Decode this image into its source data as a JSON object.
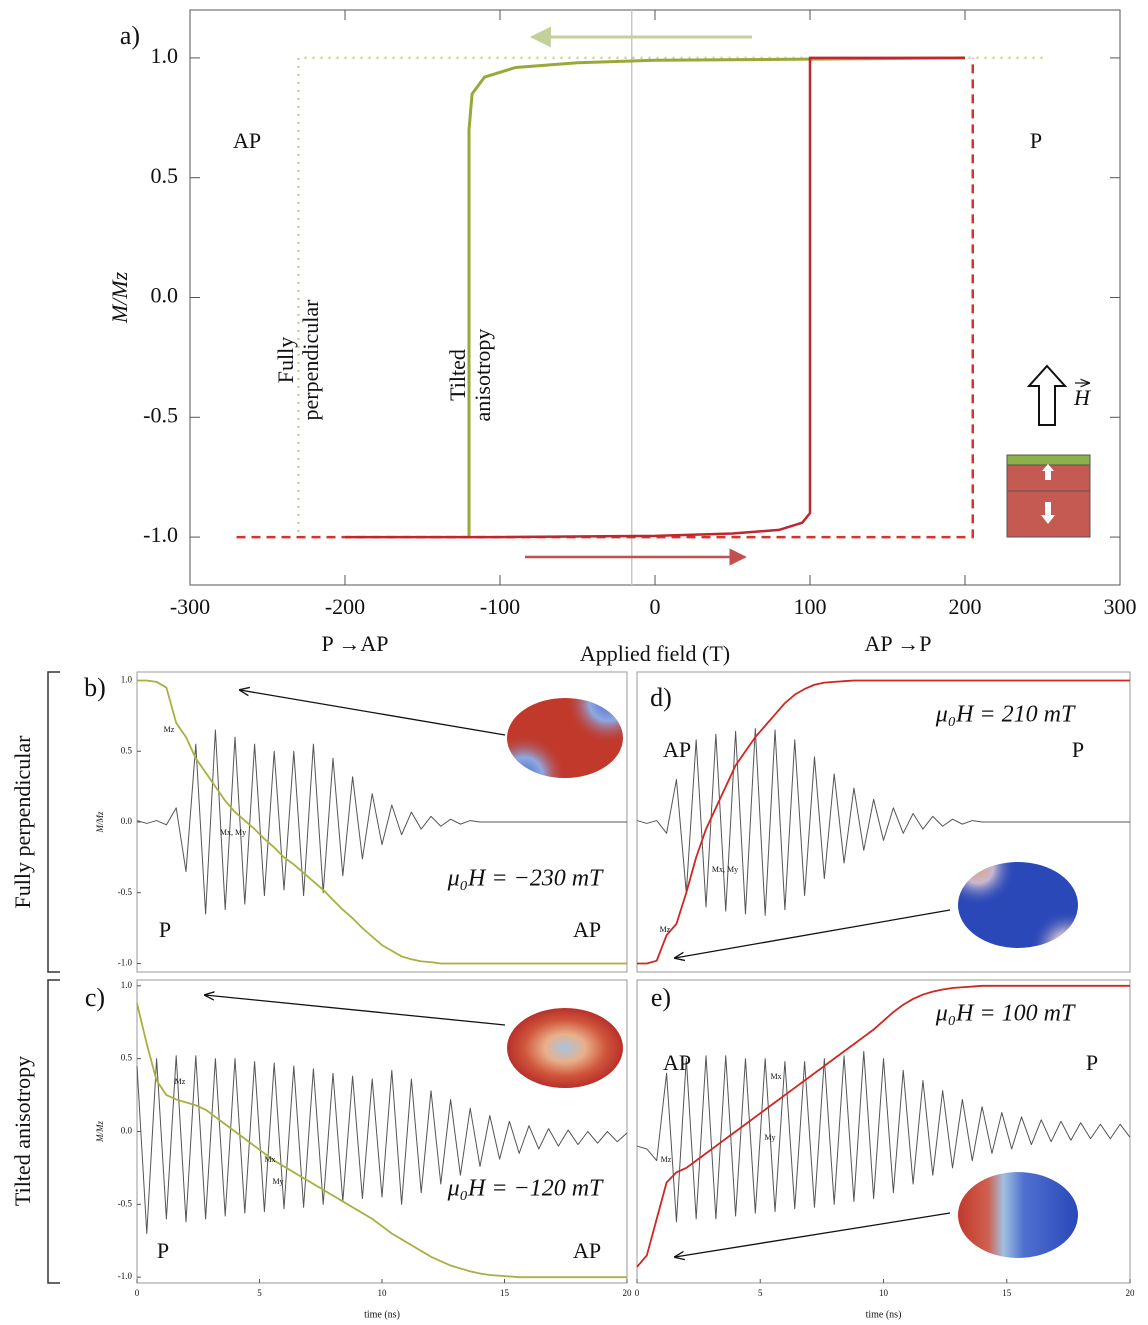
{
  "row_labels": [
    "Fully perpendicular",
    "Tilted anisotropy"
  ],
  "chart_data": [
    {
      "type": "line",
      "panel": "a",
      "x_label": "Applied field (T)",
      "y_label": "M/Mz",
      "xlim": [
        -300,
        300
      ],
      "ylim": [
        -1.2,
        1.2
      ],
      "xticks": [
        -300,
        -200,
        -100,
        0,
        100,
        200,
        300
      ],
      "yticks": [
        {
          "value": -1,
          "label": "-1.0"
        },
        -0.5,
        {
          "value": 0,
          "label": "0.0"
        },
        0.5,
        {
          "value": 1,
          "label": "1.0"
        }
      ],
      "vline": -15,
      "annotations": [
        "a)",
        "AP",
        "P",
        "Fully perpendicular",
        "Tilted anisotropy",
        "P →AP",
        "AP →P",
        "H"
      ],
      "series": [
        {
          "color": "#c9d48e",
          "dash": "dotted",
          "width": 2.5,
          "x": [
            250,
            -230,
            -230
          ],
          "values": [
            1,
            1,
            -1
          ]
        },
        {
          "color": "#d9312b",
          "dash": "dashed",
          "width": 2.5,
          "x": [
            -270,
            205,
            205
          ],
          "values": [
            -1,
            -1,
            1
          ]
        },
        {
          "color": "#9aa83a",
          "dash": "solid",
          "width": 3,
          "x": [
            200,
            100,
            0,
            -50,
            -90,
            -110,
            -118,
            -120,
            -120
          ],
          "values": [
            1,
            0.995,
            0.99,
            0.98,
            0.96,
            0.92,
            0.85,
            0.7,
            -1
          ]
        },
        {
          "color": "#c0272d",
          "dash": "solid",
          "width": 2.5,
          "x": [
            -200,
            -100,
            0,
            50,
            80,
            95,
            100,
            100,
            200
          ],
          "values": [
            -1,
            -1,
            -0.995,
            -0.985,
            -0.97,
            -0.94,
            -0.9,
            1,
            1
          ]
        }
      ]
    },
    {
      "type": "line",
      "panel": "b",
      "y_label": "M/Mz",
      "xlim": [
        0,
        20
      ],
      "ylim": [
        -1.06,
        1.06
      ],
      "yticks": [
        {
          "value": 1,
          "label": "1.0"
        },
        0.5,
        {
          "value": 0,
          "label": "0.0"
        },
        -0.5,
        {
          "value": -1,
          "label": "-1.0"
        }
      ],
      "annotations": [
        "b)",
        "μ₀H = −230 mT",
        "P",
        "AP",
        "Mz",
        "Mx, My"
      ],
      "x": [
        0,
        0.4,
        0.8,
        1.2,
        1.6,
        2,
        2.4,
        2.8,
        3.2,
        3.6,
        4,
        4.4,
        4.8,
        5.2,
        5.6,
        6,
        6.4,
        6.8,
        7.2,
        7.6,
        8,
        8.4,
        8.8,
        9.2,
        9.6,
        10,
        10.4,
        10.8,
        11.2,
        11.6,
        12,
        12.4,
        12.8,
        13.2,
        13.6,
        14,
        14.4,
        14.8,
        15.2,
        15.6,
        16,
        16.4,
        16.8,
        17.2,
        17.6,
        18,
        18.4,
        18.8,
        19.2,
        19.6,
        20
      ],
      "series": [
        {
          "color": "#555555",
          "dash": "solid",
          "width": 1,
          "values": [
            0.01,
            -0.01,
            0.01,
            -0.02,
            0.1,
            -0.35,
            0.55,
            -0.65,
            0.65,
            -0.62,
            0.6,
            -0.58,
            0.55,
            -0.52,
            0.5,
            -0.48,
            0.5,
            -0.52,
            0.55,
            -0.5,
            0.45,
            -0.38,
            0.32,
            -0.26,
            0.2,
            -0.16,
            0.12,
            -0.09,
            0.07,
            -0.05,
            0.04,
            -0.03,
            0.02,
            -0.015,
            0.01,
            0,
            0,
            0,
            0,
            0,
            0,
            0,
            0,
            0,
            0,
            0,
            0,
            0,
            0,
            0,
            0
          ]
        },
        {
          "color": "#a8b040",
          "dash": "solid",
          "width": 1.8,
          "values": [
            1,
            1,
            0.99,
            0.95,
            0.7,
            0.6,
            0.45,
            0.35,
            0.25,
            0.15,
            0.07,
            0.01,
            -0.05,
            -0.12,
            -0.18,
            -0.25,
            -0.3,
            -0.36,
            -0.42,
            -0.48,
            -0.55,
            -0.62,
            -0.68,
            -0.75,
            -0.81,
            -0.87,
            -0.91,
            -0.95,
            -0.97,
            -0.985,
            -0.99,
            -1,
            -1,
            -1,
            -1,
            -1,
            -1,
            -1,
            -1,
            -1,
            -1,
            -1,
            -1,
            -1,
            -1,
            -1,
            -1,
            -1,
            -1,
            -1,
            -1
          ]
        }
      ]
    },
    {
      "type": "line",
      "panel": "c",
      "x_label": "time (ns)",
      "y_label": "M/Mz",
      "xlim": [
        0,
        20
      ],
      "ylim": [
        -1.04,
        1.04
      ],
      "xticks": [
        0,
        5,
        10,
        15,
        20
      ],
      "yticks": [
        {
          "value": 1,
          "label": "1.0"
        },
        0.5,
        {
          "value": 0,
          "label": "0.0"
        },
        -0.5,
        {
          "value": -1,
          "label": "-1.0"
        }
      ],
      "annotations": [
        "c)",
        "μ₀H = −120 mT",
        "P",
        "AP",
        "Mz",
        "Mx",
        "My"
      ],
      "x": [
        0,
        0.4,
        0.8,
        1.2,
        1.6,
        2,
        2.4,
        2.8,
        3.2,
        3.6,
        4,
        4.4,
        4.8,
        5.2,
        5.6,
        6,
        6.4,
        6.8,
        7.2,
        7.6,
        8,
        8.4,
        8.8,
        9.2,
        9.6,
        10,
        10.4,
        10.8,
        11.2,
        11.6,
        12,
        12.4,
        12.8,
        13.2,
        13.6,
        14,
        14.4,
        14.8,
        15.2,
        15.6,
        16,
        16.4,
        16.8,
        17.2,
        17.6,
        18,
        18.4,
        18.8,
        19.2,
        19.6,
        20
      ],
      "series": [
        {
          "color": "#555555",
          "dash": "solid",
          "width": 1,
          "values": [
            0.45,
            -0.7,
            0.5,
            -0.6,
            0.52,
            -0.62,
            0.52,
            -0.6,
            0.5,
            -0.58,
            0.5,
            -0.56,
            0.48,
            -0.55,
            0.47,
            -0.53,
            0.45,
            -0.52,
            0.43,
            -0.5,
            0.4,
            -0.48,
            0.38,
            -0.46,
            0.36,
            -0.45,
            0.42,
            -0.5,
            0.36,
            -0.42,
            0.28,
            -0.36,
            0.22,
            -0.3,
            0.16,
            -0.24,
            0.11,
            -0.19,
            0.07,
            -0.15,
            0.04,
            -0.12,
            0.02,
            -0.1,
            0.01,
            -0.09,
            0,
            -0.08,
            0,
            -0.07,
            -0.01
          ]
        },
        {
          "color": "#a8b040",
          "dash": "solid",
          "width": 1.8,
          "values": [
            0.88,
            0.6,
            0.35,
            0.25,
            0.22,
            0.2,
            0.18,
            0.15,
            0.1,
            0.05,
            0,
            -0.05,
            -0.1,
            -0.15,
            -0.2,
            -0.24,
            -0.28,
            -0.32,
            -0.36,
            -0.4,
            -0.44,
            -0.48,
            -0.52,
            -0.56,
            -0.6,
            -0.65,
            -0.7,
            -0.74,
            -0.78,
            -0.82,
            -0.86,
            -0.89,
            -0.92,
            -0.94,
            -0.96,
            -0.975,
            -0.985,
            -0.99,
            -0.995,
            -1,
            -1,
            -1,
            -1,
            -1,
            -1,
            -1,
            -1,
            -1,
            -1,
            -1,
            -1
          ]
        }
      ]
    },
    {
      "type": "line",
      "panel": "d",
      "xlim": [
        0,
        20
      ],
      "ylim": [
        -1.06,
        1.06
      ],
      "annotations": [
        "d)",
        "μ₀H = 210 mT",
        "AP",
        "P",
        "Mz",
        "Mx, My"
      ],
      "x": [
        0,
        0.4,
        0.8,
        1.2,
        1.6,
        2,
        2.4,
        2.8,
        3.2,
        3.6,
        4,
        4.4,
        4.8,
        5.2,
        5.6,
        6,
        6.4,
        6.8,
        7.2,
        7.6,
        8,
        8.4,
        8.8,
        9.2,
        9.6,
        10,
        10.4,
        10.8,
        11.2,
        11.6,
        12,
        12.4,
        12.8,
        13.2,
        13.6,
        14,
        14.4,
        14.8,
        15.2,
        15.6,
        16,
        16.4,
        16.8,
        17.2,
        17.6,
        18,
        18.4,
        18.8,
        19.2,
        19.6,
        20
      ],
      "series": [
        {
          "color": "#555555",
          "dash": "solid",
          "width": 1,
          "values": [
            0.01,
            -0.01,
            0.01,
            -0.08,
            0.3,
            -0.5,
            0.58,
            -0.6,
            0.62,
            -0.63,
            0.64,
            -0.65,
            0.66,
            -0.66,
            0.65,
            -0.62,
            0.58,
            -0.52,
            0.46,
            -0.4,
            0.34,
            -0.29,
            0.24,
            -0.2,
            0.16,
            -0.13,
            0.1,
            -0.08,
            0.06,
            -0.05,
            0.04,
            -0.03,
            0.02,
            -0.015,
            0.01,
            0,
            0,
            0,
            0,
            0,
            0,
            0,
            0,
            0,
            0,
            0,
            0,
            0,
            0,
            0,
            0
          ]
        },
        {
          "color": "#d0261f",
          "dash": "solid",
          "width": 1.8,
          "values": [
            -1,
            -1,
            -0.98,
            -0.8,
            -0.72,
            -0.5,
            -0.25,
            -0.05,
            0.1,
            0.25,
            0.4,
            0.5,
            0.6,
            0.68,
            0.76,
            0.84,
            0.9,
            0.94,
            0.97,
            0.985,
            0.99,
            0.995,
            1,
            1,
            1,
            1,
            1,
            1,
            1,
            1,
            1,
            1,
            1,
            1,
            1,
            1,
            1,
            1,
            1,
            1,
            1,
            1,
            1,
            1,
            1,
            1,
            1,
            1,
            1,
            1,
            1
          ]
        }
      ]
    },
    {
      "type": "line",
      "panel": "e",
      "x_label": "time (ns)",
      "xlim": [
        0,
        20
      ],
      "ylim": [
        -1.04,
        1.04
      ],
      "xticks": [
        0,
        5,
        10,
        15,
        20
      ],
      "annotations": [
        "e)",
        "μ₀H = 100 mT",
        "AP",
        "P",
        "Mx",
        "My",
        "Mz"
      ],
      "x": [
        0,
        0.4,
        0.8,
        1.2,
        1.6,
        2,
        2.4,
        2.8,
        3.2,
        3.6,
        4,
        4.4,
        4.8,
        5.2,
        5.6,
        6,
        6.4,
        6.8,
        7.2,
        7.6,
        8,
        8.4,
        8.8,
        9.2,
        9.6,
        10,
        10.4,
        10.8,
        11.2,
        11.6,
        12,
        12.4,
        12.8,
        13.2,
        13.6,
        14,
        14.4,
        14.8,
        15.2,
        15.6,
        16,
        16.4,
        16.8,
        17.2,
        17.6,
        18,
        18.4,
        18.8,
        19.2,
        19.6,
        20
      ],
      "series": [
        {
          "color": "#555555",
          "dash": "solid",
          "width": 1,
          "values": [
            -0.1,
            -0.12,
            -0.2,
            0.4,
            -0.62,
            0.5,
            -0.6,
            0.52,
            -0.6,
            0.52,
            -0.58,
            0.5,
            -0.56,
            0.5,
            -0.55,
            0.48,
            -0.53,
            0.48,
            -0.52,
            0.5,
            -0.5,
            0.52,
            -0.48,
            0.55,
            -0.46,
            0.5,
            -0.42,
            0.42,
            -0.36,
            0.35,
            -0.3,
            0.28,
            -0.25,
            0.22,
            -0.2,
            0.17,
            -0.15,
            0.13,
            -0.12,
            0.1,
            -0.09,
            0.08,
            -0.07,
            0.07,
            -0.06,
            0.06,
            -0.05,
            0.05,
            -0.05,
            0.05,
            -0.04
          ]
        },
        {
          "color": "#d0261f",
          "dash": "solid",
          "width": 1.8,
          "values": [
            -0.93,
            -0.85,
            -0.6,
            -0.35,
            -0.28,
            -0.25,
            -0.2,
            -0.15,
            -0.1,
            -0.05,
            0,
            0.05,
            0.1,
            0.15,
            0.2,
            0.25,
            0.3,
            0.35,
            0.4,
            0.45,
            0.5,
            0.55,
            0.6,
            0.65,
            0.7,
            0.76,
            0.82,
            0.87,
            0.91,
            0.94,
            0.96,
            0.975,
            0.985,
            0.99,
            0.995,
            1,
            1,
            1,
            1,
            1,
            1,
            1,
            1,
            1,
            1,
            1,
            1,
            1,
            1,
            1,
            1
          ]
        }
      ]
    }
  ]
}
